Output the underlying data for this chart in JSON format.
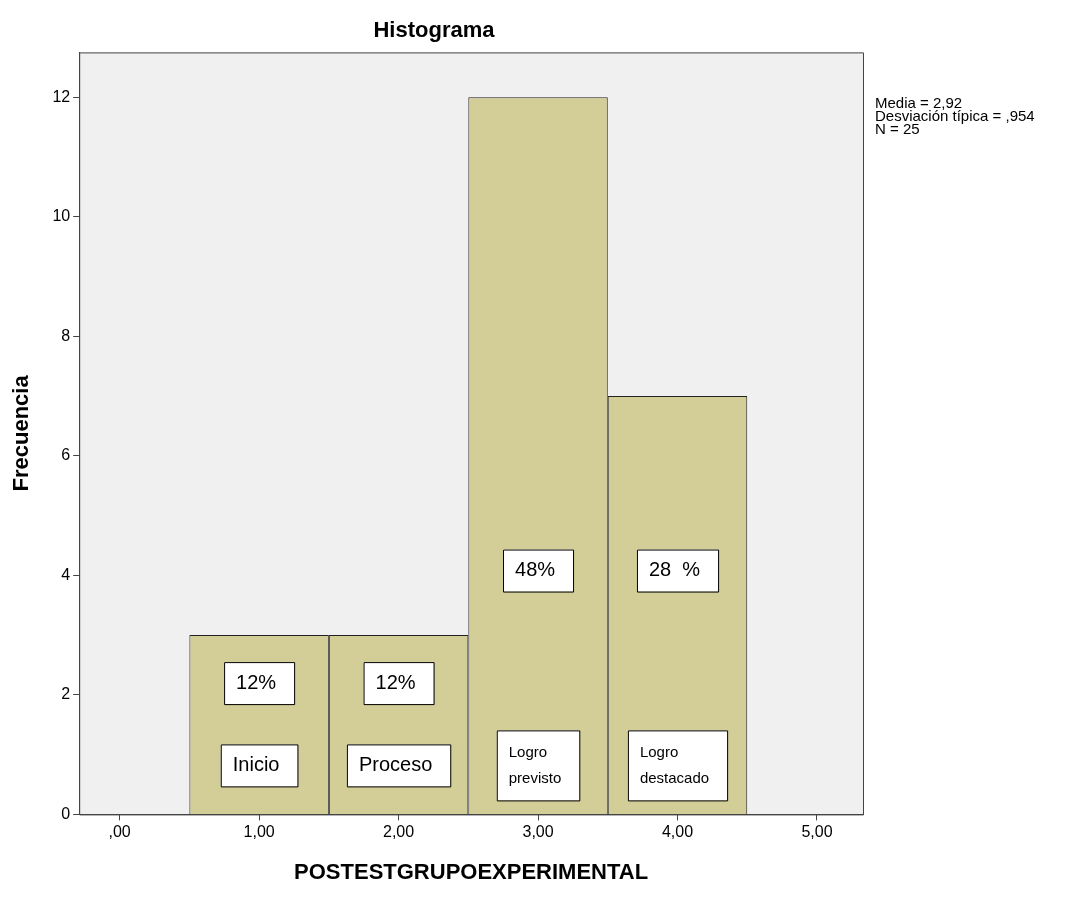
{
  "chart_data": {
    "type": "histogram",
    "title": "Histograma",
    "xlabel": "POSTESTGRUPOEXPERIMENTAL",
    "ylabel": "Frecuencia",
    "bins": [
      0.5,
      1.5,
      2.5,
      3.5,
      4.5
    ],
    "values": [
      3,
      3,
      12,
      7
    ],
    "color": "#d3cd98",
    "xlim": [
      -0.29,
      5.33
    ],
    "xticks": [
      {
        "value": 0,
        "label": ",00"
      },
      {
        "value": 1,
        "label": "1,00"
      },
      {
        "value": 2,
        "label": "2,00"
      },
      {
        "value": 3,
        "label": "3,00"
      },
      {
        "value": 4,
        "label": "4,00"
      },
      {
        "value": 5,
        "label": "5,00"
      }
    ],
    "ylim": [
      0,
      12.75
    ],
    "yticks": [
      0,
      2,
      4,
      6,
      8,
      10,
      12
    ],
    "grid": false,
    "annotations": [
      "12%",
      "12%",
      "48%",
      "28  %",
      "Inicio",
      "Proceso",
      "Logro previsto",
      "Logro destacado",
      "Media = 2,92",
      "Desviación típica = ,954",
      "N = 25"
    ]
  }
}
